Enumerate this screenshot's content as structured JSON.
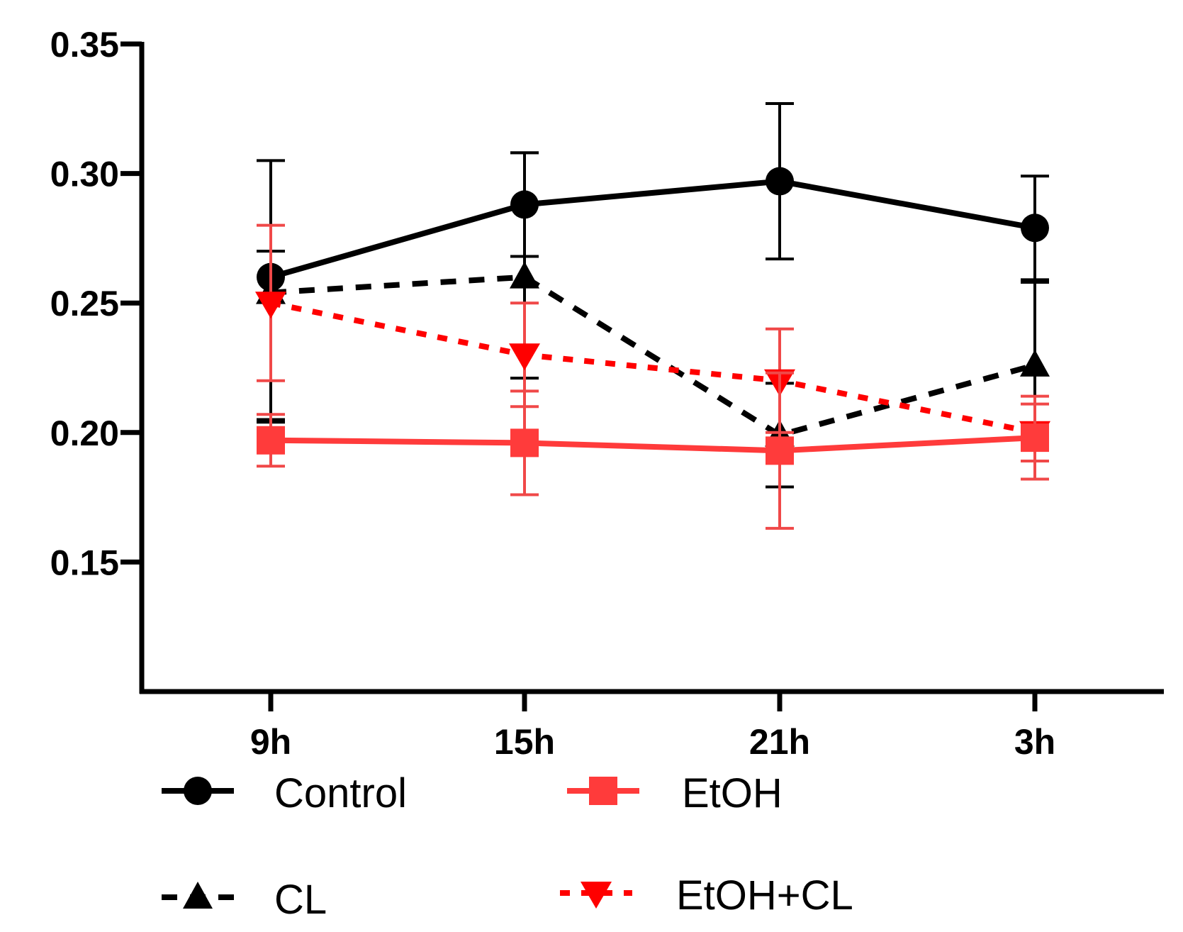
{
  "chart_data": {
    "type": "line",
    "title": "",
    "xlabel": "",
    "ylabel": "",
    "categories": [
      "9h",
      "15h",
      "21h",
      "3h"
    ],
    "ylim": [
      0.1,
      0.35
    ],
    "yticks": [
      0.15,
      0.2,
      0.25,
      0.3,
      0.35
    ],
    "ytick_labels": [
      "0.15",
      "0.20",
      "0.25",
      "0.30",
      "0.35"
    ],
    "legend_position": "bottom",
    "series": [
      {
        "name": "Control",
        "color": "#000000",
        "marker": "circle",
        "linestyle": "solid",
        "values": [
          0.26,
          0.288,
          0.297,
          0.279
        ],
        "err_lo": [
          0.055,
          0.02,
          0.03,
          0.02
        ],
        "err_hi": [
          0.045,
          0.02,
          0.03,
          0.02
        ]
      },
      {
        "name": "EtOH",
        "color": "#ff3b3b",
        "marker": "square",
        "linestyle": "solid",
        "values": [
          0.197,
          0.196,
          0.193,
          0.198
        ],
        "err_lo": [
          0.01,
          0.02,
          0.03,
          0.016
        ],
        "err_hi": [
          0.01,
          0.02,
          0.03,
          0.016
        ]
      },
      {
        "name": "CL",
        "color": "#000000",
        "marker": "triangle-up",
        "linestyle": "dashed",
        "values": [
          0.254,
          0.26,
          0.199,
          0.226
        ],
        "err_lo": [
          0.05,
          0.039,
          0.02,
          0.03
        ],
        "err_hi": [
          0.016,
          0.048,
          0.02,
          0.032
        ]
      },
      {
        "name": "EtOH+CL",
        "color": "#ff0000",
        "marker": "triangle-down",
        "linestyle": "dotted",
        "values": [
          0.25,
          0.23,
          0.22,
          0.2
        ],
        "err_lo": [
          0.03,
          0.02,
          0.02,
          0.011
        ],
        "err_hi": [
          0.03,
          0.02,
          0.02,
          0.011
        ]
      }
    ]
  }
}
